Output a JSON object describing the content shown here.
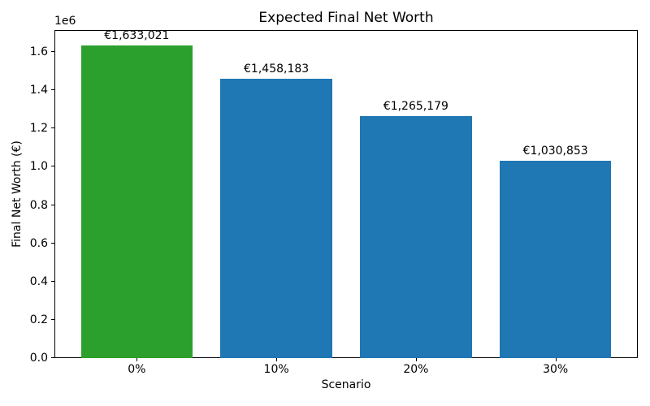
{
  "chart_data": {
    "type": "bar",
    "title": "Expected Final Net Worth",
    "xlabel": "Scenario",
    "ylabel": "Final Net Worth (€)",
    "offset_text": "1e6",
    "categories": [
      "0%",
      "10%",
      "20%",
      "30%"
    ],
    "values": [
      1633021,
      1458183,
      1265179,
      1030853
    ],
    "bar_labels": [
      "€1,633,021",
      "€1,458,183",
      "€1,265,179",
      "€1,030,853"
    ],
    "bar_colors": [
      "#2ca02c",
      "#1f77b4",
      "#1f77b4",
      "#1f77b4"
    ],
    "ylim": [
      0,
      1714672
    ],
    "yticks": [
      0,
      200000,
      400000,
      600000,
      800000,
      1000000,
      1200000,
      1400000,
      1600000
    ],
    "ytick_labels": [
      "0.0",
      "0.2",
      "0.4",
      "0.6",
      "0.8",
      "1.0",
      "1.2",
      "1.4",
      "1.6"
    ],
    "grid": false,
    "legend": null,
    "background_color": "#ffffff",
    "spine_color": "#000000",
    "text_color": "#000000"
  }
}
